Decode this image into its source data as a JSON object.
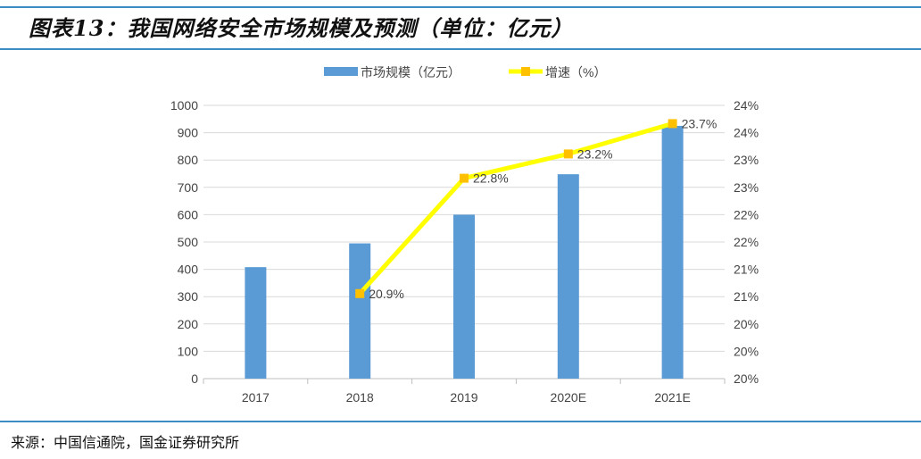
{
  "title": "图表13：我国网络安全市场规模及预测（单位：亿元）",
  "source": "来源：中国信通院，国金证券研究所",
  "colors": {
    "bar": "#5b9bd5",
    "line": "#ffff00",
    "marker": "#ffc000",
    "rule": "#3c8dc4",
    "grid": "#d9d9d9"
  },
  "chart_data": {
    "type": "bar+line",
    "categories": [
      "2017",
      "2018",
      "2019",
      "2020E",
      "2021E"
    ],
    "series": [
      {
        "name": "市场规模（亿元）",
        "type": "bar",
        "axis": "left",
        "values": [
          408,
          495,
          600,
          748,
          925
        ]
      },
      {
        "name": "增速（%）",
        "type": "line",
        "axis": "right",
        "values": [
          null,
          20.9,
          22.8,
          23.2,
          23.7
        ],
        "labels": [
          "",
          "20.9%",
          "22.8%",
          "23.2%",
          "23.7%"
        ]
      }
    ],
    "y_left": {
      "range": [
        0,
        1000
      ],
      "ticks": [
        "0",
        "100",
        "200",
        "300",
        "400",
        "500",
        "600",
        "700",
        "800",
        "900",
        "1000"
      ]
    },
    "y_right": {
      "range": [
        19.5,
        24.0
      ],
      "ticks": [
        "20%",
        "20%",
        "21%",
        "21%",
        "22%",
        "22%",
        "23%",
        "23%",
        "24%",
        "24%"
      ]
    },
    "grid": true,
    "legend_position": "top"
  }
}
